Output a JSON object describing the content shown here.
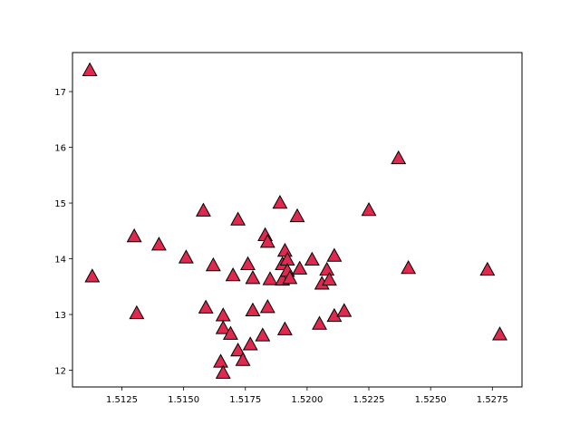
{
  "chart_data": {
    "type": "scatter",
    "title": "",
    "xlabel": "",
    "ylabel": "",
    "xlim": [
      1.5105,
      1.5287
    ],
    "ylim": [
      11.7,
      17.7
    ],
    "x_ticks": [
      "1.5125",
      "1.5150",
      "1.5175",
      "1.5200",
      "1.5225",
      "1.5250",
      "1.5275"
    ],
    "y_ticks": [
      "12",
      "13",
      "14",
      "15",
      "16",
      "17"
    ],
    "grid": false,
    "marker": "triangle-up",
    "marker_color": "#e0294f",
    "marker_edge_color": "#000000",
    "series": [
      {
        "points": [
          [
            1.5112,
            17.38
          ],
          [
            1.5113,
            13.68
          ],
          [
            1.513,
            14.4
          ],
          [
            1.5131,
            13.02
          ],
          [
            1.514,
            14.25
          ],
          [
            1.5151,
            14.02
          ],
          [
            1.5158,
            14.86
          ],
          [
            1.5159,
            13.12
          ],
          [
            1.5162,
            13.88
          ],
          [
            1.5165,
            12.15
          ],
          [
            1.5166,
            11.95
          ],
          [
            1.5166,
            12.98
          ],
          [
            1.5166,
            12.75
          ],
          [
            1.5169,
            12.65
          ],
          [
            1.517,
            13.7
          ],
          [
            1.5172,
            14.7
          ],
          [
            1.5172,
            12.35
          ],
          [
            1.5174,
            12.18
          ],
          [
            1.5176,
            13.9
          ],
          [
            1.5177,
            12.46
          ],
          [
            1.5178,
            13.65
          ],
          [
            1.5178,
            13.07
          ],
          [
            1.5182,
            12.62
          ],
          [
            1.5183,
            14.42
          ],
          [
            1.5184,
            14.3
          ],
          [
            1.5184,
            13.13
          ],
          [
            1.5185,
            13.63
          ],
          [
            1.5189,
            15.0
          ],
          [
            1.519,
            13.62
          ],
          [
            1.519,
            13.9
          ],
          [
            1.5191,
            14.14
          ],
          [
            1.5191,
            12.73
          ],
          [
            1.5192,
            13.98
          ],
          [
            1.5192,
            13.78
          ],
          [
            1.5193,
            13.65
          ],
          [
            1.5196,
            14.76
          ],
          [
            1.5197,
            13.82
          ],
          [
            1.5202,
            13.98
          ],
          [
            1.5205,
            12.83
          ],
          [
            1.5206,
            13.55
          ],
          [
            1.5208,
            13.8
          ],
          [
            1.5209,
            13.62
          ],
          [
            1.5211,
            12.97
          ],
          [
            1.5211,
            14.05
          ],
          [
            1.5215,
            13.06
          ],
          [
            1.5225,
            14.87
          ],
          [
            1.5237,
            15.8
          ],
          [
            1.5241,
            13.83
          ],
          [
            1.5273,
            13.8
          ],
          [
            1.5278,
            12.64
          ]
        ]
      }
    ]
  }
}
